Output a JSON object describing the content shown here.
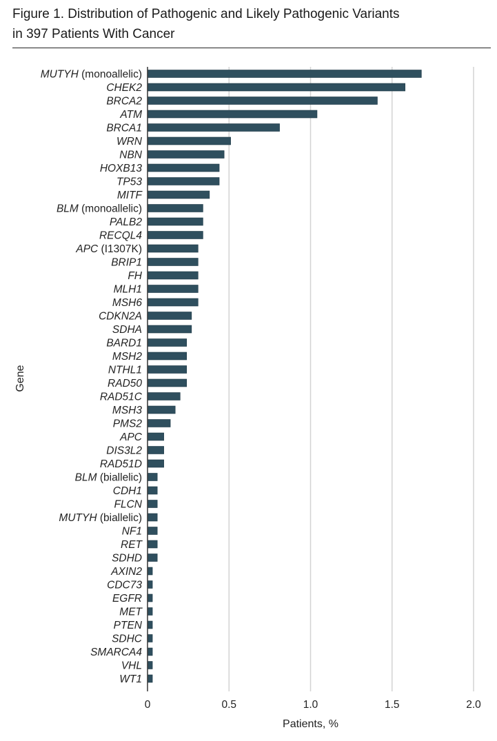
{
  "figure": {
    "title_line1": "Figure 1. Distribution of Pathogenic and Likely Pathogenic Variants",
    "title_line2": "in 397 Patients With Cancer"
  },
  "chart_data": {
    "type": "bar",
    "orientation": "horizontal",
    "xlabel": "Patients, %",
    "ylabel": "Gene",
    "xlim": [
      0,
      2.0
    ],
    "xticks": [
      "0",
      "0.5",
      "1.0",
      "1.5",
      "2.0"
    ],
    "grid": "vertical",
    "bar_color": "#2f4f5e",
    "grid_color": "#d3d3d3",
    "categories": [
      {
        "gene": "MUTYH",
        "suffix": " (monoallelic)",
        "value": 1.68
      },
      {
        "gene": "CHEK2",
        "suffix": "",
        "value": 1.58
      },
      {
        "gene": "BRCA2",
        "suffix": "",
        "value": 1.41
      },
      {
        "gene": "ATM",
        "suffix": "",
        "value": 1.04
      },
      {
        "gene": "BRCA1",
        "suffix": "",
        "value": 0.81
      },
      {
        "gene": "WRN",
        "suffix": "",
        "value": 0.51
      },
      {
        "gene": "NBN",
        "suffix": "",
        "value": 0.47
      },
      {
        "gene": "HOXB13",
        "suffix": "",
        "value": 0.44
      },
      {
        "gene": "TP53",
        "suffix": "",
        "value": 0.44
      },
      {
        "gene": "MITF",
        "suffix": "",
        "value": 0.38
      },
      {
        "gene": "BLM",
        "suffix": " (monoallelic)",
        "value": 0.34
      },
      {
        "gene": "PALB2",
        "suffix": "",
        "value": 0.34
      },
      {
        "gene": "RECQL4",
        "suffix": "",
        "value": 0.34
      },
      {
        "gene": "APC",
        "suffix": " (I1307K)",
        "value": 0.31
      },
      {
        "gene": "BRIP1",
        "suffix": "",
        "value": 0.31
      },
      {
        "gene": "FH",
        "suffix": "",
        "value": 0.31
      },
      {
        "gene": "MLH1",
        "suffix": "",
        "value": 0.31
      },
      {
        "gene": "MSH6",
        "suffix": "",
        "value": 0.31
      },
      {
        "gene": "CDKN2A",
        "suffix": "",
        "value": 0.27
      },
      {
        "gene": "SDHA",
        "suffix": "",
        "value": 0.27
      },
      {
        "gene": "BARD1",
        "suffix": "",
        "value": 0.24
      },
      {
        "gene": "MSH2",
        "suffix": "",
        "value": 0.24
      },
      {
        "gene": "NTHL1",
        "suffix": "",
        "value": 0.24
      },
      {
        "gene": "RAD50",
        "suffix": "",
        "value": 0.24
      },
      {
        "gene": "RAD51C",
        "suffix": "",
        "value": 0.2
      },
      {
        "gene": "MSH3",
        "suffix": "",
        "value": 0.17
      },
      {
        "gene": "PMS2",
        "suffix": "",
        "value": 0.14
      },
      {
        "gene": "APC",
        "suffix": "",
        "value": 0.1
      },
      {
        "gene": "DIS3L2",
        "suffix": "",
        "value": 0.1
      },
      {
        "gene": "RAD51D",
        "suffix": "",
        "value": 0.1
      },
      {
        "gene": "BLM",
        "suffix": " (biallelic)",
        "value": 0.06
      },
      {
        "gene": "CDH1",
        "suffix": "",
        "value": 0.06
      },
      {
        "gene": "FLCN",
        "suffix": "",
        "value": 0.06
      },
      {
        "gene": "MUTYH",
        "suffix": " (biallelic)",
        "value": 0.06
      },
      {
        "gene": "NF1",
        "suffix": "",
        "value": 0.06
      },
      {
        "gene": "RET",
        "suffix": "",
        "value": 0.06
      },
      {
        "gene": "SDHD",
        "suffix": "",
        "value": 0.06
      },
      {
        "gene": "AXIN2",
        "suffix": "",
        "value": 0.03
      },
      {
        "gene": "CDC73",
        "suffix": "",
        "value": 0.03
      },
      {
        "gene": "EGFR",
        "suffix": "",
        "value": 0.03
      },
      {
        "gene": "MET",
        "suffix": "",
        "value": 0.03
      },
      {
        "gene": "PTEN",
        "suffix": "",
        "value": 0.03
      },
      {
        "gene": "SDHC",
        "suffix": "",
        "value": 0.03
      },
      {
        "gene": "SMARCA4",
        "suffix": "",
        "value": 0.03
      },
      {
        "gene": "VHL",
        "suffix": "",
        "value": 0.03
      },
      {
        "gene": "WT1",
        "suffix": "",
        "value": 0.03
      }
    ]
  }
}
